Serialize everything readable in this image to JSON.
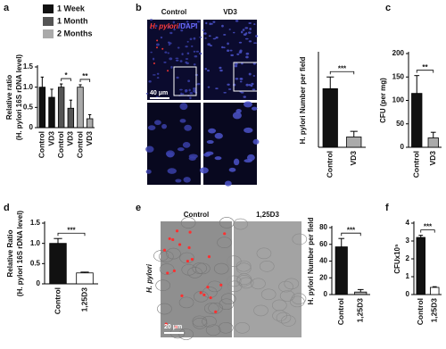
{
  "chart_data": [
    {
      "type": "bar",
      "panel": "a",
      "ylabel": [
        "Relative ratio",
        "(H. pylori 16S rDNA level)"
      ],
      "categories": [
        "Control",
        "VD3",
        "Control",
        "VD3",
        "Control",
        "VD3"
      ],
      "series": [
        {
          "name": "1 Week",
          "color": "#111111",
          "values": [
            1.0,
            0.75,
            null,
            null,
            null,
            null
          ],
          "errors": [
            0.25,
            0.2,
            null,
            null,
            null,
            null
          ]
        },
        {
          "name": "1 Month",
          "color": "#555555",
          "values": [
            null,
            null,
            1.0,
            0.48,
            null,
            null
          ],
          "errors": [
            null,
            null,
            0.08,
            0.2,
            null,
            null
          ]
        },
        {
          "name": "2 Months",
          "color": "#aaaaaa",
          "values": [
            null,
            null,
            null,
            null,
            1.0,
            0.22
          ],
          "errors": [
            null,
            null,
            null,
            null,
            0.06,
            0.1
          ]
        }
      ],
      "ylim": [
        0,
        1.5
      ],
      "yticks": [
        0,
        0.5,
        {
          "value": 1,
          "label": "1.0"
        },
        1.5
      ],
      "annotations": [
        "*",
        "**"
      ]
    },
    {
      "type": "bar",
      "ylabel": [
        "H. pylori Number per field"
      ],
      "categories": [
        "Control",
        "VD3"
      ],
      "values": [
        125,
        22
      ],
      "errors": [
        25,
        12
      ],
      "colors": [
        "#111111",
        "#aaaaaa"
      ],
      "ylim": [
        0,
        200
      ],
      "annotations": [
        "***"
      ]
    },
    {
      "type": "bar",
      "panel": "c",
      "ylabel": [
        "CFU (per mg)"
      ],
      "categories": [
        "Control",
        "VD3"
      ],
      "values": [
        115,
        20
      ],
      "errors": [
        38,
        12
      ],
      "colors": [
        "#111111",
        "#aaaaaa"
      ],
      "ylim": [
        0,
        200
      ],
      "yticks": [
        0,
        50,
        100,
        150,
        200
      ],
      "annotations": [
        "**"
      ]
    },
    {
      "type": "bar",
      "panel": "d",
      "ylabel": [
        "Relative Ratio",
        "(H. pylori 16S rDNA level)"
      ],
      "categories": [
        "Control",
        "1,25D3"
      ],
      "values": [
        1.0,
        0.27
      ],
      "errors": [
        0.12,
        0.02
      ],
      "colors": [
        "#111111",
        "#ffffff"
      ],
      "ylim": [
        0,
        1.5
      ],
      "yticks": [
        0,
        0.5,
        {
          "value": 1,
          "label": "1.0"
        },
        1.5
      ],
      "annotations": [
        "***"
      ]
    },
    {
      "type": "bar",
      "ylabel": [
        "H. pylori Number per field"
      ],
      "categories": [
        "Control",
        "1,25D3"
      ],
      "values": [
        57,
        3
      ],
      "errors": [
        10,
        3
      ],
      "colors": [
        "#111111",
        "#aaaaaa"
      ],
      "ylim": [
        0,
        80
      ],
      "yticks": [
        0,
        20,
        40,
        60,
        80
      ],
      "annotations": [
        "***"
      ]
    },
    {
      "type": "bar",
      "panel": "f",
      "ylabel": [
        "CFUx10⁵"
      ],
      "categories": [
        "Control",
        "1,25D3"
      ],
      "values": [
        3.2,
        0.4
      ],
      "errors": [
        0.12,
        0.04
      ],
      "colors": [
        "#111111",
        "#ffffff"
      ],
      "ylim": [
        0,
        4
      ],
      "yticks": [
        0,
        1,
        2,
        3,
        4
      ],
      "annotations": [
        "***"
      ]
    }
  ],
  "images": [
    {
      "panel": "b",
      "columns": [
        "Control",
        "VD3"
      ],
      "stain_red": "H. pylori",
      "stain_blue": "/DAPI",
      "scale_bar": "40 μm"
    },
    {
      "panel": "e",
      "columns": [
        "Control",
        "1,25D3"
      ],
      "side_label": "H. pylori",
      "scale_bar": "20 μm"
    }
  ]
}
